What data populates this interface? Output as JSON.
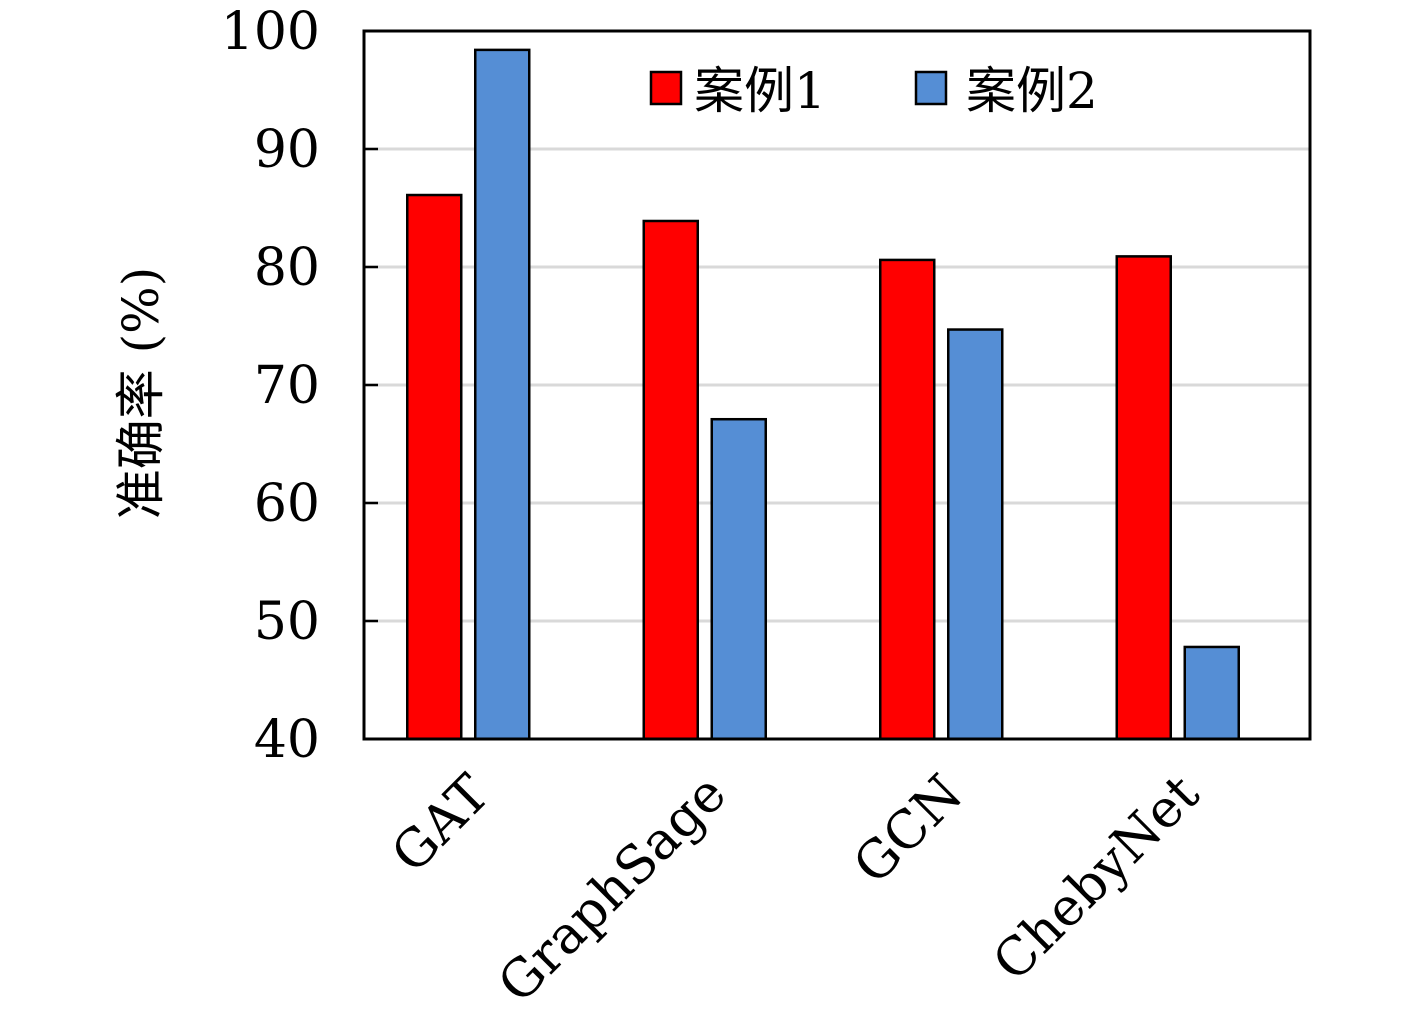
{
  "chart_data": {
    "type": "bar",
    "title": "",
    "xlabel": "",
    "ylabel": "准确率 (%)",
    "categories": [
      "GAT",
      "GraphSage",
      "GCN",
      "ChebyNet"
    ],
    "series": [
      {
        "name": "案例1",
        "color": "#ff0000",
        "values": [
          86.1,
          83.9,
          80.6,
          80.9
        ]
      },
      {
        "name": "案例2",
        "color": "#558ed5",
        "values": [
          98.4,
          67.1,
          74.7,
          47.8
        ]
      }
    ],
    "ylim": [
      40,
      100
    ],
    "yticks": [
      "40",
      "50",
      "60",
      "70",
      "80",
      "90",
      "100"
    ],
    "grid": "horizontal",
    "legend_position": "top-right"
  }
}
